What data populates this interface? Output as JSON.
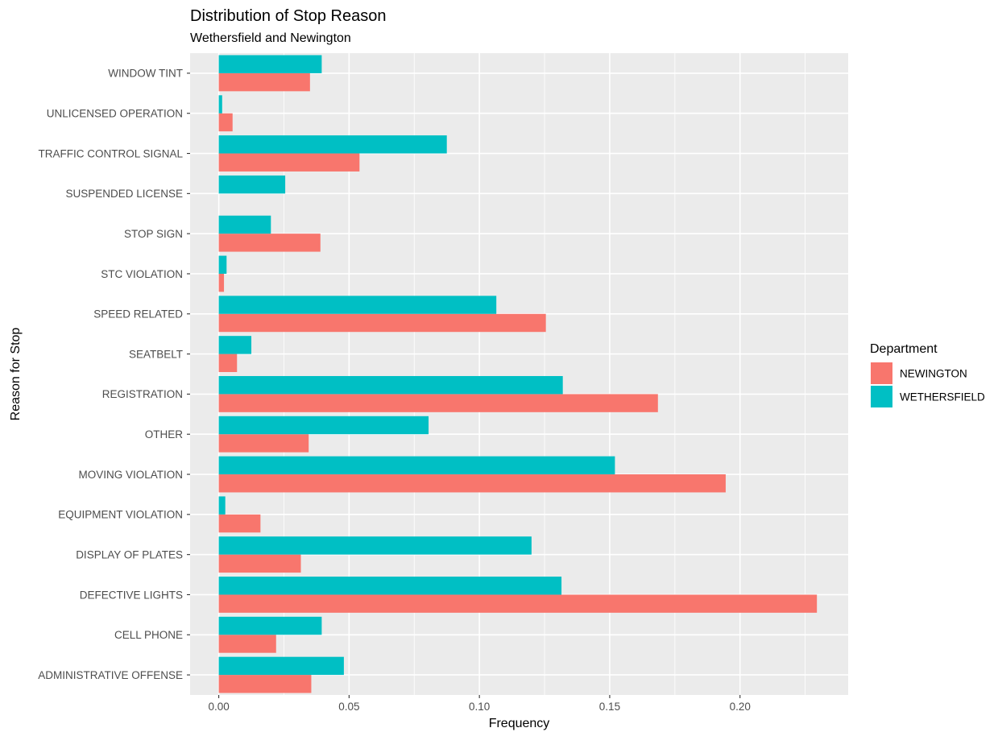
{
  "chart_data": {
    "type": "bar",
    "orientation": "horizontal",
    "title": "Distribution of Stop Reason",
    "subtitle": "Wethersfield and Newington",
    "xlabel": "Frequency",
    "ylabel": "Reason for Stop",
    "xlim": [
      -0.011,
      0.2415
    ],
    "x_ticks": [
      0.0,
      0.05,
      0.1,
      0.15,
      0.2
    ],
    "x_tick_labels": [
      "0.00",
      "0.05",
      "0.10",
      "0.15",
      "0.20"
    ],
    "grid": true,
    "legend": {
      "title": "Department",
      "placement": "right"
    },
    "categories": [
      "ADMINISTRATIVE OFFENSE",
      "CELL PHONE",
      "DEFECTIVE LIGHTS",
      "DISPLAY OF PLATES",
      "EQUIPMENT VIOLATION",
      "MOVING VIOLATION",
      "OTHER",
      "REGISTRATION",
      "SEATBELT",
      "SPEED RELATED",
      "STC VIOLATION",
      "STOP SIGN",
      "SUSPENDED LICENSE",
      "TRAFFIC CONTROL SIGNAL",
      "UNLICENSED OPERATION",
      "WINDOW TINT"
    ],
    "series": [
      {
        "name": "NEWINGTON",
        "color": "#F8766D",
        "values": [
          0.0355,
          0.022,
          0.2295,
          0.0315,
          0.016,
          0.1945,
          0.0345,
          0.1685,
          0.007,
          0.1255,
          0.002,
          0.039,
          0.0,
          0.054,
          0.0053,
          0.035
        ]
      },
      {
        "name": "WETHERSFIELD",
        "color": "#00BFC4",
        "values": [
          0.048,
          0.0395,
          0.1315,
          0.12,
          0.0025,
          0.152,
          0.0805,
          0.132,
          0.0125,
          0.1065,
          0.003,
          0.02,
          0.0255,
          0.0875,
          0.0013,
          0.0395
        ]
      }
    ]
  }
}
